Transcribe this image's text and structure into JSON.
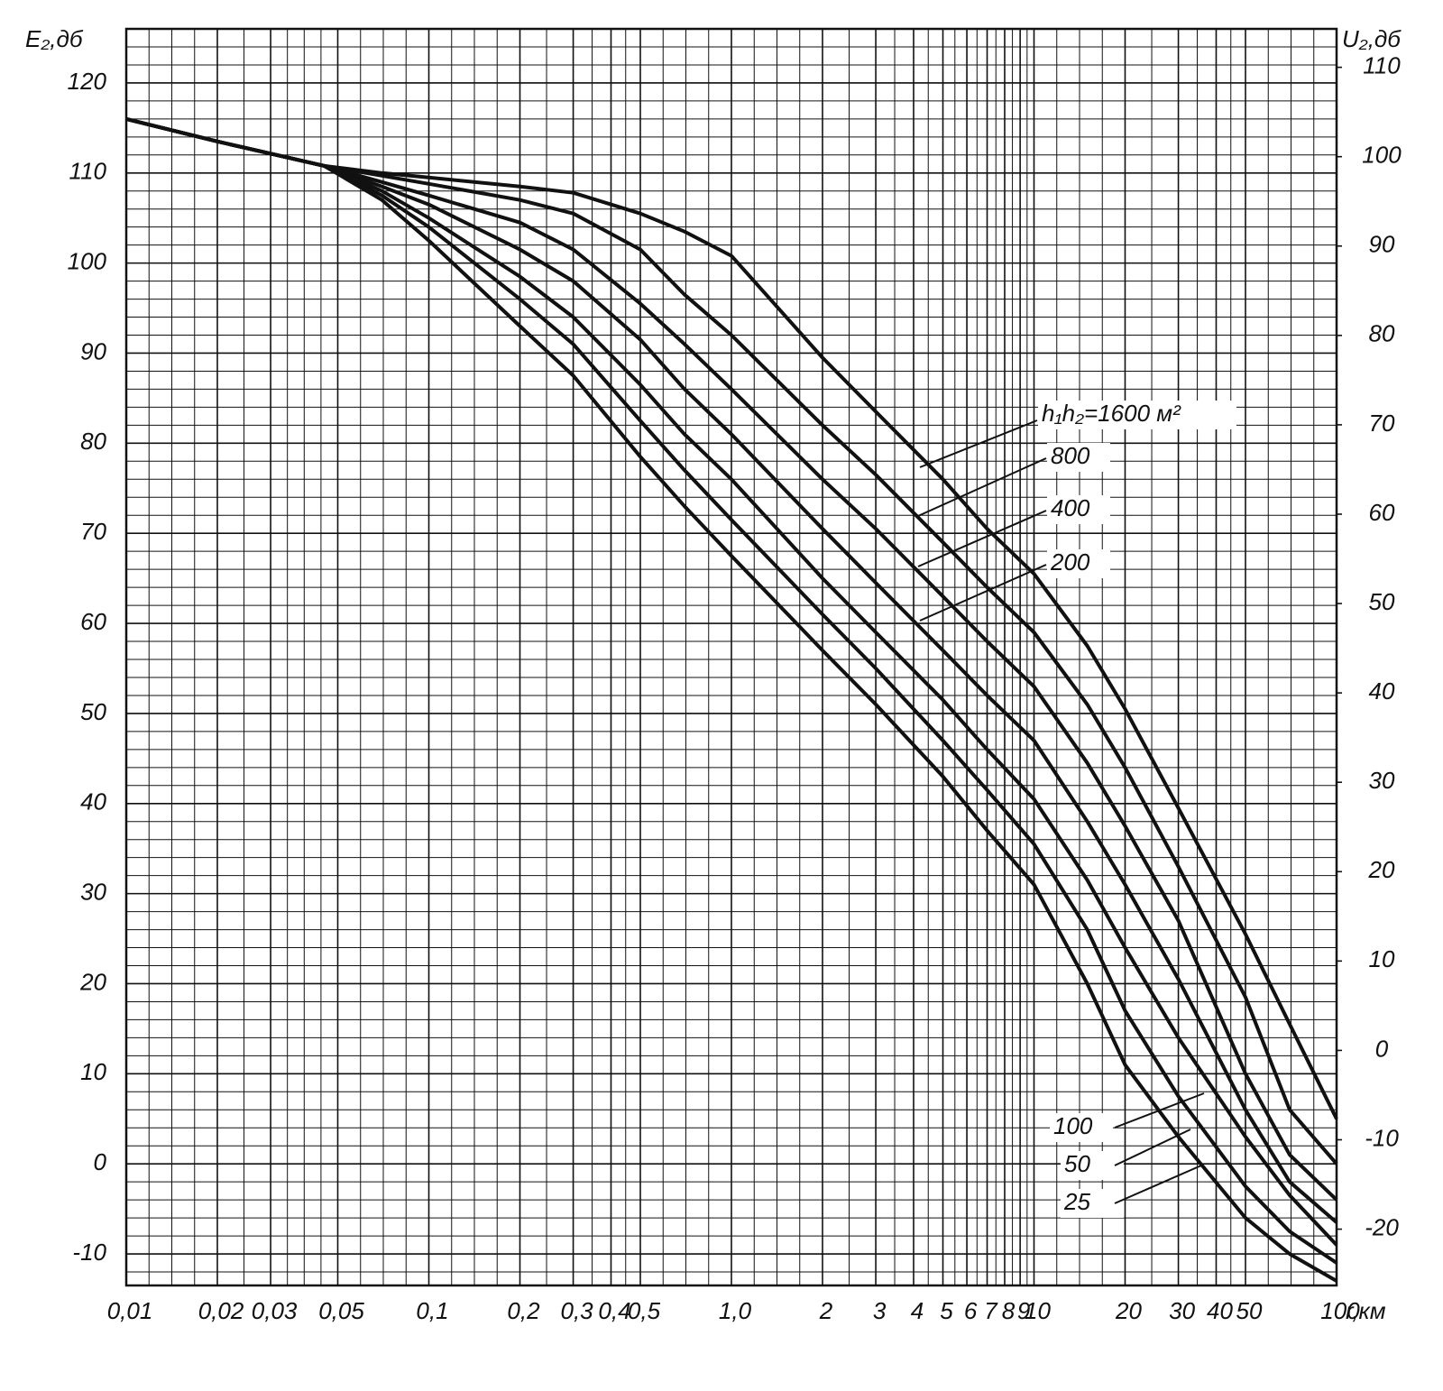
{
  "chart_data": {
    "type": "line",
    "y_label": "E₂,дб",
    "y2_label": "U₂,дб",
    "x_label": "r,км",
    "xscale": "log",
    "grid": true,
    "xlim": [
      0.01,
      100
    ],
    "ylim": [
      -13.5,
      126
    ],
    "y2lim": [
      -26.3,
      114.3
    ],
    "xticks": [
      {
        "value": 0.01,
        "label": "0,01"
      },
      {
        "value": 0.02,
        "label": "0,02"
      },
      {
        "value": 0.03,
        "label": "0,03"
      },
      {
        "value": 0.05,
        "label": "0,05"
      },
      {
        "value": 0.1,
        "label": "0,1"
      },
      {
        "value": 0.2,
        "label": "0,2"
      },
      {
        "value": 0.3,
        "label": "0,3"
      },
      {
        "value": 0.4,
        "label": "0,4"
      },
      {
        "value": 0.5,
        "label": "0,5"
      },
      {
        "value": 1,
        "label": "1,0"
      },
      2,
      3,
      4,
      5,
      6,
      7,
      8,
      9,
      10,
      20,
      30,
      40,
      50,
      100
    ],
    "yticks": [
      120,
      110,
      100,
      90,
      80,
      70,
      60,
      50,
      40,
      30,
      20,
      10,
      0,
      -10
    ],
    "y2ticks": [
      110,
      100,
      90,
      80,
      70,
      60,
      50,
      40,
      30,
      20,
      10,
      0,
      -10,
      -20
    ],
    "x": [
      0.01,
      0.02,
      0.045,
      0.07,
      0.1,
      0.2,
      0.3,
      0.5,
      0.7,
      1,
      2,
      3,
      5,
      7,
      10,
      15,
      20,
      30,
      50,
      70,
      100
    ],
    "series": [
      {
        "name": "h₁h₂=1600 м²",
        "color": "#111111",
        "values": [
          116,
          113.5,
          110.8,
          110,
          109.5,
          108.5,
          107.8,
          105.5,
          103.5,
          100.8,
          89.5,
          83.5,
          76,
          70.5,
          65.5,
          57.5,
          50.5,
          39.5,
          25.5,
          15.5,
          5
        ]
      },
      {
        "name": "800",
        "color": "#111111",
        "values": [
          116,
          113.5,
          110.8,
          109.7,
          108.8,
          107,
          105.5,
          101.5,
          96.5,
          92,
          82,
          76.5,
          69,
          64,
          59,
          51,
          44,
          33,
          18.5,
          6,
          0
        ]
      },
      {
        "name": "400",
        "color": "#111111",
        "values": [
          116,
          113.5,
          110.8,
          109,
          107.5,
          104.5,
          101.5,
          95.5,
          91,
          86,
          76,
          70.5,
          63,
          58,
          53,
          44.5,
          37.5,
          27,
          10,
          1,
          -4
        ]
      },
      {
        "name": "200",
        "color": "#111111",
        "values": [
          116,
          113.5,
          110.8,
          108.5,
          106.5,
          101.5,
          98,
          91.5,
          86,
          81,
          70.5,
          64.5,
          57,
          52,
          47,
          38,
          31,
          20.5,
          6,
          -2,
          -6.5
        ]
      },
      {
        "name": "100",
        "color": "#111111",
        "values": [
          116,
          113.5,
          110.8,
          108,
          105,
          98.5,
          94,
          86.5,
          81,
          76,
          65,
          59,
          51.5,
          46,
          40.5,
          31.5,
          24,
          14,
          3,
          -3.5,
          -9
        ]
      },
      {
        "name": "50",
        "color": "#111111",
        "values": [
          116,
          113.5,
          110.8,
          107.5,
          104,
          96,
          91,
          82.5,
          77,
          71.5,
          61,
          55,
          47,
          41.5,
          35.5,
          26,
          17,
          7.5,
          -2.5,
          -7.5,
          -11
        ]
      },
      {
        "name": "25",
        "color": "#111111",
        "values": [
          116,
          113.5,
          110.8,
          107,
          102.5,
          93,
          87.5,
          78.5,
          73,
          67.5,
          57,
          51,
          43,
          37,
          31,
          20,
          11,
          3,
          -6,
          -10,
          -13
        ]
      }
    ]
  }
}
